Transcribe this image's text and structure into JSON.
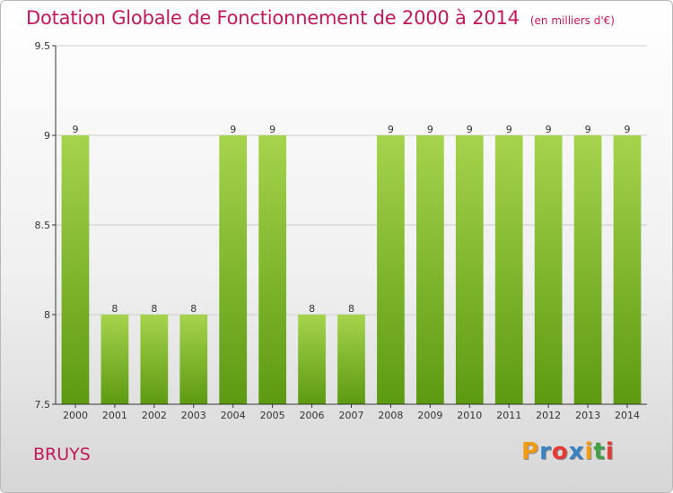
{
  "title": "Dotation Globale de Fonctionnement de 2000 à 2014",
  "subtitle": "(en milliers d'€)",
  "place": "BRUYS",
  "logo": {
    "letters": [
      "P",
      "r",
      "o",
      "x",
      "i",
      "t",
      "i"
    ],
    "colors": [
      "#f39c12",
      "#3b82c4",
      "#e53935",
      "#3b82c4",
      "#f39c12",
      "#43a047",
      "#e53935"
    ]
  },
  "colors": {
    "bar_top": "#a6d34c",
    "bar_bottom": "#5c9a12",
    "axis": "#333333",
    "grid": "#cccccc",
    "accent": "#c2185b"
  },
  "chart_data": {
    "type": "bar",
    "title": "Dotation Globale de Fonctionnement de 2000 à 2014",
    "subtitle": "(en milliers d'€)",
    "xlabel": "",
    "ylabel": "",
    "categories": [
      "2000",
      "2001",
      "2002",
      "2003",
      "2004",
      "2005",
      "2006",
      "2007",
      "2008",
      "2009",
      "2010",
      "2011",
      "2012",
      "2013",
      "2014"
    ],
    "values": [
      9,
      8,
      8,
      8,
      9,
      9,
      8,
      8,
      9,
      9,
      9,
      9,
      9,
      9,
      9
    ],
    "data_labels": [
      "9",
      "8",
      "8",
      "8",
      "9",
      "9",
      "8",
      "8",
      "9",
      "9",
      "9",
      "9",
      "9",
      "9",
      "9"
    ],
    "ylim": [
      7.5,
      9.5
    ],
    "yticks": [
      7.5,
      8,
      8.5,
      9,
      9.5
    ],
    "ytick_labels": [
      "7.5",
      "8",
      "8.5",
      "9",
      "9.5"
    ],
    "grid": true,
    "legend": "none"
  }
}
